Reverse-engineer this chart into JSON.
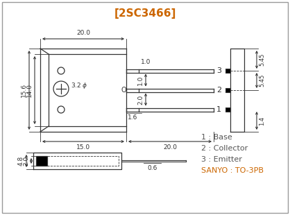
{
  "title": "[2SC3466]",
  "title_color": "#CC6600",
  "bg_color": "#ffffff",
  "line_color": "#333333",
  "legend_color": "#555555",
  "legend": [
    "1 : Base",
    "2 : Collector",
    "3 : Emitter"
  ],
  "package": "SANYO : TO-3PB",
  "package_color": "#CC6600"
}
